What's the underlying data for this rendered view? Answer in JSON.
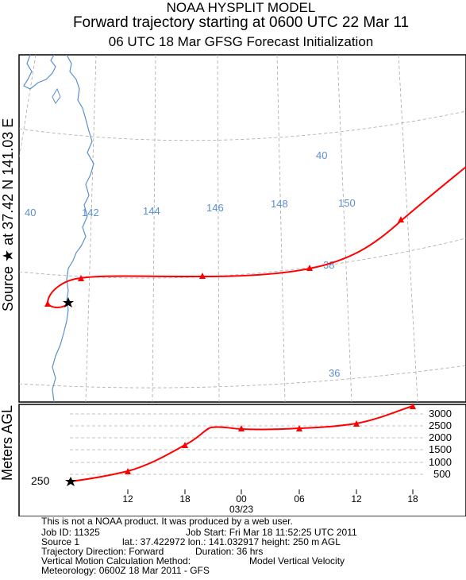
{
  "header": {
    "title": "NOAA HYSPLIT MODEL",
    "subtitle": "Forward trajectory starting at 0600 UTC 22 Mar 11",
    "subtitle2": "06 UTC 18 Mar    GFSG  Forecast Initialization"
  },
  "source_label": "Source ★ at   37.42 N  141.03 E",
  "map": {
    "lon_labels": [
      "40",
      "142",
      "144",
      "146",
      "148",
      "150"
    ],
    "lat_labels": [
      "40",
      "38",
      "36"
    ],
    "colors": {
      "trajectory": "#ff0000",
      "coastline": "#5b8fd0",
      "grid": "#9a9a9a",
      "label": "#5b8fd0"
    }
  },
  "height_panel": {
    "ylabel": "Meters AGL",
    "start_label": "250",
    "y_ticks": [
      "3000",
      "2500",
      "2000",
      "1500",
      "1000",
      "500"
    ],
    "x_ticks": [
      "12",
      "18",
      "00",
      "06",
      "12",
      "18"
    ],
    "date_label": "03/23"
  },
  "chart_data": {
    "type": "line",
    "xlabel": "",
    "ylabel": "Meters AGL",
    "x": [
      "06",
      "12",
      "18",
      "00",
      "06",
      "12",
      "18"
    ],
    "series": [
      {
        "values": [
          250,
          600,
          1700,
          2400,
          2400,
          2700,
          3150
        ]
      }
    ],
    "ylim": [
      0,
      3200
    ]
  },
  "footer": {
    "l1": "This is not a NOAA product. It was produced by a web user.",
    "l2a": "Job ID: 11325",
    "l2b": "Job Start: Fri Mar 18 11:52:25 UTC 2011",
    "l3a": "Source 1",
    "l3b": "lat.: 37.422972   lon.: 141.032917    height: 250 m AGL",
    "l4a": "Trajectory Direction: Forward",
    "l4b": "Duration: 36 hrs",
    "l5a": "Vertical Motion Calculation Method:",
    "l5b": "Model Vertical Velocity",
    "l6": "Meteorology: 0600Z 18 Mar 2011 - GFS"
  }
}
